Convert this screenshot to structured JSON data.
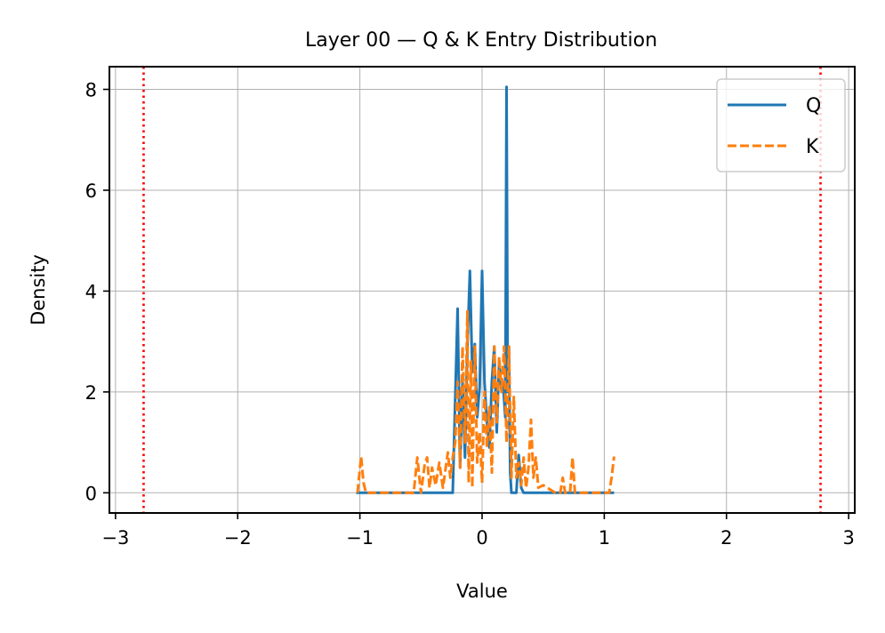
{
  "chart_data": {
    "type": "line",
    "title": "Layer 00 — Q & K Entry Distribution",
    "xlabel": "Value",
    "ylabel": "Density",
    "xlim": [
      -3.05,
      3.05
    ],
    "ylim": [
      -0.4,
      8.45
    ],
    "xticks": [
      -3,
      -2,
      -1,
      0,
      1,
      2,
      3
    ],
    "xtick_labels": [
      "−3",
      "−2",
      "−1",
      "0",
      "1",
      "2",
      "3"
    ],
    "yticks": [
      0,
      2,
      4,
      6,
      8
    ],
    "ytick_labels": [
      "0",
      "2",
      "4",
      "6",
      "8"
    ],
    "grid": true,
    "legend_position": "top-right",
    "reference_lines": [
      {
        "x": -2.77,
        "color": "#ff0000",
        "style": "dotted"
      },
      {
        "x": 2.77,
        "color": "#ff0000",
        "style": "dotted"
      }
    ],
    "series": [
      {
        "name": "Q",
        "color": "#1f77b4",
        "style": "solid",
        "x": [
          -1.03,
          -0.25,
          -0.24,
          -0.2,
          -0.18,
          -0.16,
          -0.14,
          -0.12,
          -0.1,
          -0.08,
          -0.06,
          -0.04,
          -0.02,
          0.0,
          0.02,
          0.04,
          0.06,
          0.08,
          0.1,
          0.12,
          0.14,
          0.16,
          0.17,
          0.19,
          0.2,
          0.21,
          0.22,
          0.23,
          0.24,
          0.26,
          0.28,
          0.3,
          0.32,
          0.34,
          0.36,
          1.08
        ],
        "y": [
          0,
          0,
          0,
          3.65,
          0.5,
          2.2,
          0.7,
          2.9,
          4.4,
          2.4,
          2.95,
          1.5,
          2.1,
          4.4,
          2.2,
          1.4,
          0.9,
          2.2,
          2.9,
          1.2,
          2.6,
          2.0,
          2.2,
          1.5,
          8.05,
          2.0,
          2.9,
          0.4,
          0,
          0,
          0,
          0.75,
          0.1,
          0,
          0,
          0
        ]
      },
      {
        "name": "K",
        "color": "#ff7f0e",
        "style": "dashed",
        "x": [
          -1.02,
          -0.99,
          -0.97,
          -0.95,
          -0.9,
          -0.56,
          -0.53,
          -0.5,
          -0.47,
          -0.45,
          -0.43,
          -0.41,
          -0.38,
          -0.35,
          -0.32,
          -0.28,
          -0.26,
          -0.24,
          -0.22,
          -0.2,
          -0.18,
          -0.16,
          -0.14,
          -0.12,
          -0.11,
          -0.09,
          -0.08,
          -0.06,
          -0.04,
          -0.02,
          0.0,
          0.02,
          0.04,
          0.06,
          0.08,
          0.1,
          0.12,
          0.14,
          0.16,
          0.18,
          0.2,
          0.22,
          0.24,
          0.26,
          0.28,
          0.3,
          0.32,
          0.34,
          0.36,
          0.38,
          0.4,
          0.42,
          0.44,
          0.46,
          0.5,
          0.6,
          0.64,
          0.66,
          0.68,
          0.72,
          0.74,
          0.76,
          0.78,
          1.04,
          1.06,
          1.08
        ],
        "y": [
          0,
          0.72,
          0.2,
          0,
          0,
          0,
          0.7,
          0,
          0.55,
          0.7,
          0.1,
          0.5,
          0.15,
          0.6,
          0.1,
          0.8,
          0.3,
          0.7,
          1.0,
          2.2,
          0.5,
          2.9,
          1.0,
          3.6,
          0.2,
          2.6,
          0.1,
          2.9,
          0.6,
          1.2,
          0.2,
          2.0,
          0.9,
          1.7,
          0.4,
          2.9,
          1.4,
          2.7,
          2.0,
          2.9,
          1.0,
          2.9,
          0.3,
          1.9,
          0.3,
          0.6,
          0.15,
          0.7,
          0.1,
          0.5,
          1.45,
          0.3,
          0.7,
          0.1,
          0.15,
          0,
          0,
          0.3,
          0,
          0,
          0.7,
          0,
          0,
          0,
          0.3,
          0.72
        ]
      }
    ]
  }
}
